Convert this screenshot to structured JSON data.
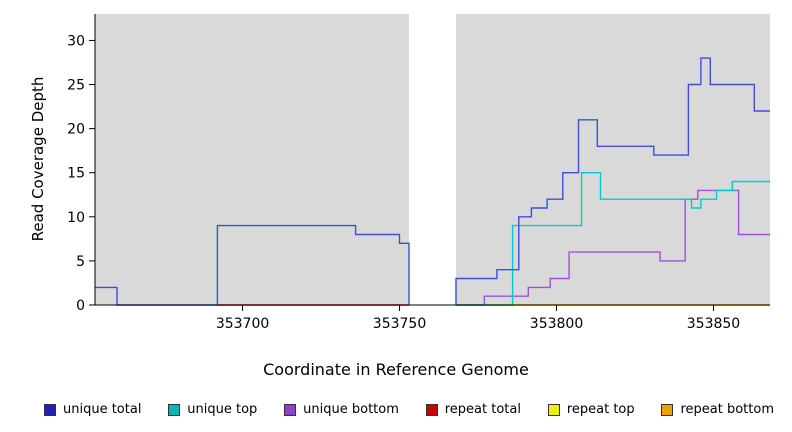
{
  "chart_data": {
    "type": "line",
    "title": "",
    "xlabel": "Coordinate in Reference Genome",
    "ylabel": "Read Coverage Depth",
    "xlim": [
      353653,
      353868
    ],
    "ylim": [
      0,
      33
    ],
    "xticks": [
      353700,
      353750,
      353800,
      353850
    ],
    "yticks": [
      0,
      5,
      10,
      15,
      20,
      25,
      30
    ],
    "plot_bg": "#d9d9d9",
    "grid": "off",
    "legend_position": "bottom",
    "gap_band": {
      "from": 353753,
      "to": 353768,
      "color": "#ffffff"
    },
    "series": [
      {
        "name": "repeat total",
        "color": "#dd0000",
        "segments": [
          [
            [
              353692,
              0
            ],
            [
              353753,
              0
            ]
          ]
        ]
      },
      {
        "name": "repeat top",
        "color": "#f0f000",
        "segments": [
          [
            [
              353768,
              0
            ],
            [
              353868,
              0
            ]
          ]
        ]
      },
      {
        "name": "repeat bottom",
        "color": "#ffa500",
        "segments": [
          [
            [
              353768,
              0
            ],
            [
              353868,
              0
            ]
          ]
        ]
      },
      {
        "name": "unique bottom",
        "color": "#a050e0",
        "segments": [
          [
            [
              353768,
              0
            ],
            [
              353777,
              0
            ],
            [
              353777,
              1
            ],
            [
              353791,
              1
            ],
            [
              353791,
              2
            ],
            [
              353798,
              2
            ],
            [
              353798,
              3
            ],
            [
              353804,
              3
            ],
            [
              353804,
              6
            ],
            [
              353833,
              6
            ],
            [
              353833,
              5
            ],
            [
              353841,
              5
            ],
            [
              353841,
              12
            ],
            [
              353845,
              12
            ],
            [
              353845,
              13
            ],
            [
              353858,
              13
            ],
            [
              353858,
              8
            ],
            [
              353868,
              8
            ]
          ]
        ]
      },
      {
        "name": "unique top",
        "color": "#00cccc",
        "segments": [
          [
            [
              353768,
              0
            ],
            [
              353786,
              0
            ],
            [
              353786,
              9
            ],
            [
              353808,
              9
            ],
            [
              353808,
              15
            ],
            [
              353814,
              15
            ],
            [
              353814,
              12
            ],
            [
              353843,
              12
            ],
            [
              353843,
              11
            ],
            [
              353846,
              11
            ],
            [
              353846,
              12
            ],
            [
              353851,
              12
            ],
            [
              353851,
              13
            ],
            [
              353856,
              13
            ],
            [
              353856,
              14
            ],
            [
              353868,
              14
            ]
          ]
        ]
      },
      {
        "name": "unique total",
        "color": "#3a50dd",
        "segments": [
          [
            [
              353653,
              2
            ],
            [
              353660,
              2
            ],
            [
              353660,
              0
            ],
            [
              353692,
              0
            ],
            [
              353692,
              9
            ],
            [
              353736,
              9
            ],
            [
              353736,
              8
            ],
            [
              353750,
              8
            ],
            [
              353750,
              7
            ],
            [
              353753,
              7
            ],
            [
              353753,
              0
            ]
          ],
          [
            [
              353768,
              0
            ],
            [
              353768,
              3
            ],
            [
              353781,
              3
            ],
            [
              353781,
              4
            ],
            [
              353788,
              4
            ],
            [
              353788,
              10
            ],
            [
              353792,
              10
            ],
            [
              353792,
              11
            ],
            [
              353797,
              11
            ],
            [
              353797,
              12
            ],
            [
              353802,
              12
            ],
            [
              353802,
              15
            ],
            [
              353807,
              15
            ],
            [
              353807,
              21
            ],
            [
              353813,
              21
            ],
            [
              353813,
              18
            ],
            [
              353831,
              18
            ],
            [
              353831,
              17
            ],
            [
              353842,
              17
            ],
            [
              353842,
              25
            ],
            [
              353846,
              25
            ],
            [
              353846,
              28
            ],
            [
              353849,
              28
            ],
            [
              353849,
              25
            ],
            [
              353863,
              25
            ],
            [
              353863,
              22
            ],
            [
              353868,
              22
            ]
          ]
        ]
      }
    ],
    "legend_order": [
      "unique total",
      "unique top",
      "unique bottom",
      "repeat total",
      "repeat top",
      "repeat bottom"
    ],
    "legend_colors": {
      "unique total": "#2020c0",
      "unique top": "#00b8b8",
      "unique bottom": "#9040d0",
      "repeat total": "#cc0000",
      "repeat top": "#f0f000",
      "repeat bottom": "#f0a000"
    }
  }
}
